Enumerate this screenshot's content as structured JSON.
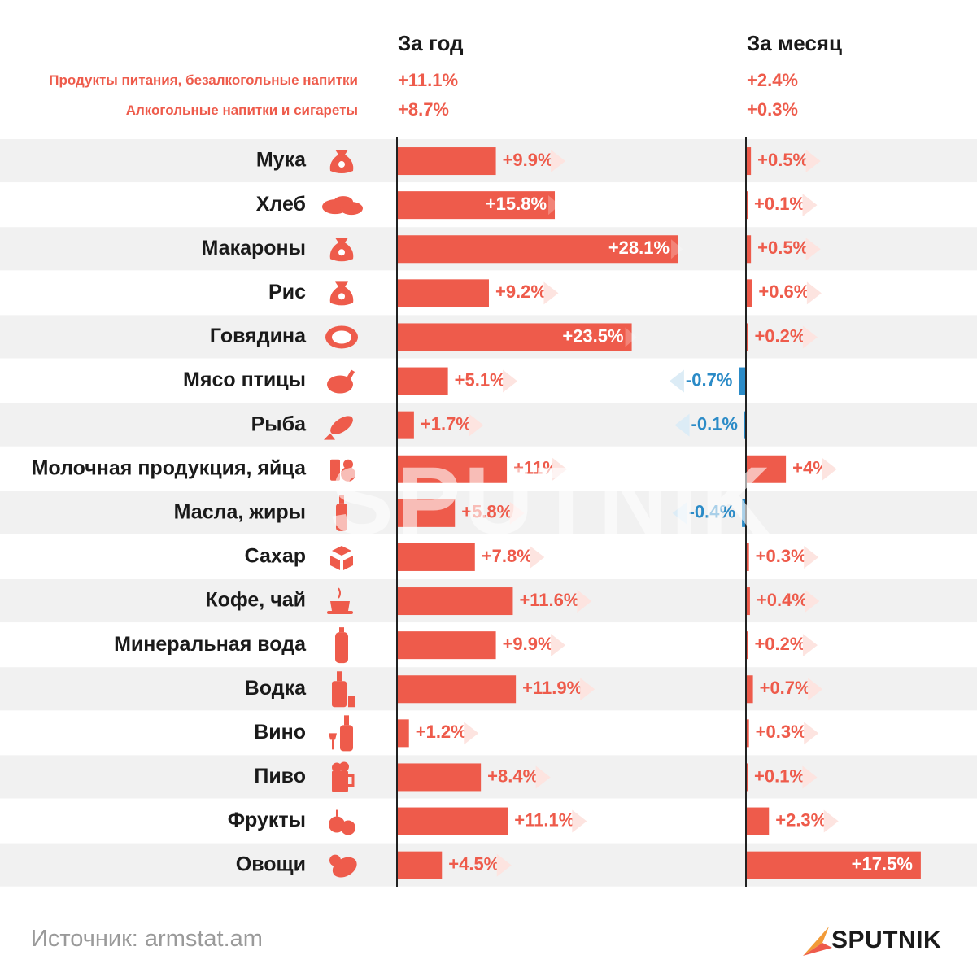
{
  "headers": {
    "year": "За год",
    "month": "За месяц"
  },
  "summary": [
    {
      "label": "Продукты питания, безалкогольные напитки",
      "year": "+11.1%",
      "month": "+2.4%"
    },
    {
      "label": "Алкогольные напитки и сигареты",
      "year": "+8.7%",
      "month": "+0.3%"
    }
  ],
  "colors": {
    "positive": "#ee5b4b",
    "negative": "#2b8bc7",
    "stripe": "#f1f1f1",
    "axis": "#222222"
  },
  "chart_data": {
    "type": "bar",
    "categories": [
      "Мука",
      "Хлеб",
      "Макароны",
      "Рис",
      "Говядина",
      "Мясо птицы",
      "Рыба",
      "Молочная продукция, яйца",
      "Масла, жиры",
      "Сахар",
      "Кофе, чай",
      "Минеральная  вода",
      "Водка",
      "Вино",
      "Пиво",
      "Фрукты",
      "Овощи"
    ],
    "icons": [
      "flour-sack-icon",
      "bread-icon",
      "pasta-sack-icon",
      "rice-sack-icon",
      "steak-icon",
      "chicken-leg-icon",
      "fish-icon",
      "milk-eggs-icon",
      "oil-bottle-icon",
      "sugar-cubes-icon",
      "coffee-cup-icon",
      "water-bottle-icon",
      "vodka-icon",
      "wine-icon",
      "beer-mug-icon",
      "fruit-icon",
      "vegetables-icon"
    ],
    "series": [
      {
        "name": "За год",
        "values": [
          9.9,
          15.8,
          28.1,
          9.2,
          23.5,
          5.1,
          1.7,
          11,
          5.8,
          7.8,
          11.6,
          9.9,
          11.9,
          1.2,
          8.4,
          11.1,
          4.5
        ],
        "labels": [
          "+9.9%",
          "+15.8%",
          "+28.1%",
          "+9.2%",
          "+23.5%",
          "+5.1%",
          "+1.7%",
          "+11%",
          "+5.8%",
          "+7.8%",
          "+11.6%",
          "+9.9%",
          "+11.9%",
          "+1.2%",
          "+8.4%",
          "+11.1%",
          "+4.5%"
        ]
      },
      {
        "name": "За месяц",
        "values": [
          0.5,
          0.1,
          0.5,
          0.6,
          0.2,
          -0.7,
          -0.1,
          4,
          -0.4,
          0.3,
          0.4,
          0.2,
          0.7,
          0.3,
          0.1,
          2.3,
          17.5
        ],
        "labels": [
          "+0.5%",
          "+0.1%",
          "+0.5%",
          "+0.6%",
          "+0.2%",
          "-0.7%",
          "-0.1%",
          "+4%",
          "-0.4%",
          "+0.3%",
          "+0.4%",
          "+0.2%",
          "+0.7%",
          "+0.3%",
          "+0.1%",
          "+2.3%",
          "+17.5%"
        ]
      }
    ]
  },
  "source": "Источник: armstat.am",
  "brand": "SPUTNIK",
  "watermark": "SPUTNIK"
}
